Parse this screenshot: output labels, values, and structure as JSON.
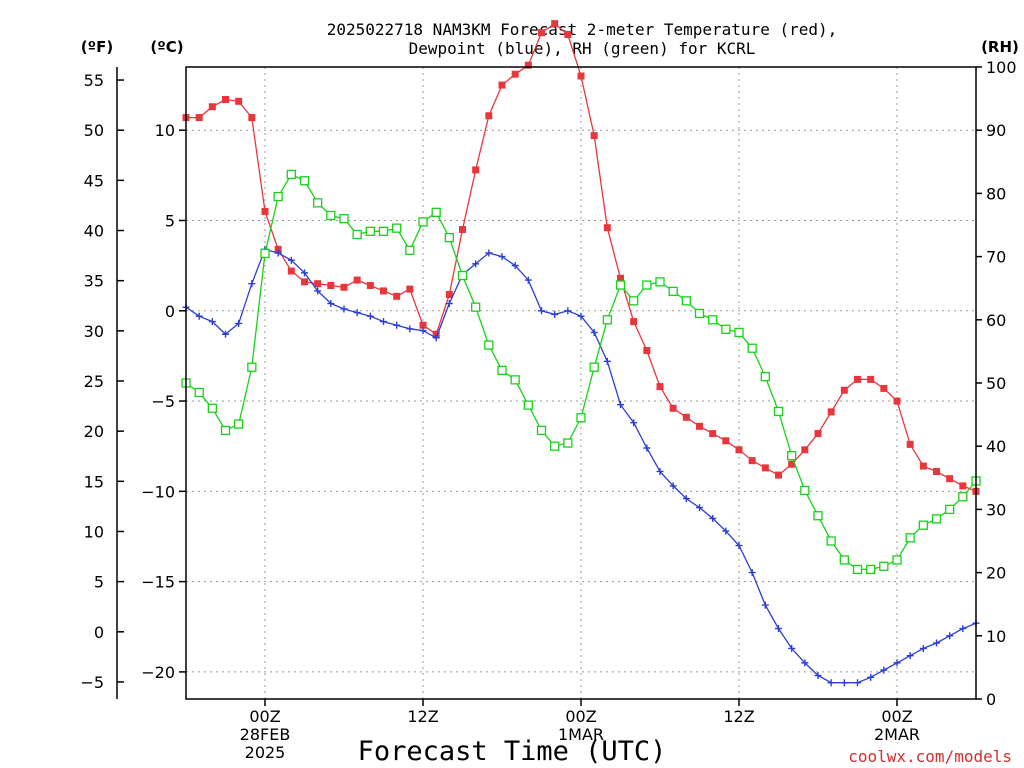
{
  "chart_data": {
    "type": "line",
    "title_line1": "2025022718 NAM3KM Forecast 2-meter Temperature (red),",
    "title_line2": "Dewpoint (blue), RH (green) for KCRL",
    "xlabel": "Forecast Time (UTC)",
    "left_unit_f": "(ºF)",
    "left_unit_c": "(ºC)",
    "right_unit": "(RH)",
    "credit": "coolwx.com/models",
    "x_range_hours": [
      -6,
      54
    ],
    "c_range": [
      -21.5,
      13.5
    ],
    "rh_range": [
      0,
      100
    ],
    "f_ticks": [
      55,
      50,
      45,
      40,
      35,
      30,
      25,
      20,
      15,
      10,
      5,
      0,
      -5
    ],
    "c_ticks": [
      10,
      5,
      0,
      -5,
      -10,
      -15,
      -20
    ],
    "rh_ticks": [
      100,
      90,
      80,
      70,
      60,
      50,
      40,
      30,
      20,
      10,
      0
    ],
    "x_ticks": [
      {
        "hour": 0,
        "line1": "00Z",
        "line2": "28FEB",
        "line3": "2025"
      },
      {
        "hour": 12,
        "line1": "12Z",
        "line2": "",
        "line3": ""
      },
      {
        "hour": 24,
        "line1": "00Z",
        "line2": "1MAR",
        "line3": ""
      },
      {
        "hour": 36,
        "line1": "12Z",
        "line2": "",
        "line3": ""
      },
      {
        "hour": 48,
        "line1": "00Z",
        "line2": "2MAR",
        "line3": ""
      }
    ],
    "colors": {
      "temperature": "#e8373c",
      "dewpoint": "#2b3ed8",
      "rh": "#19d119",
      "grid": "#9a9a9a",
      "credit": "#d42f2f"
    },
    "x": [
      -6,
      -5,
      -4,
      -3,
      -2,
      -1,
      0,
      1,
      2,
      3,
      4,
      5,
      6,
      7,
      8,
      9,
      10,
      11,
      12,
      13,
      14,
      15,
      16,
      17,
      18,
      19,
      20,
      21,
      22,
      23,
      24,
      25,
      26,
      27,
      28,
      29,
      30,
      31,
      32,
      33,
      34,
      35,
      36,
      37,
      38,
      39,
      40,
      41,
      42,
      43,
      44,
      45,
      46,
      47,
      48,
      49,
      50,
      51,
      52,
      53,
      54
    ],
    "series": [
      {
        "name": "Temperature",
        "unit": "C",
        "values": [
          10.7,
          10.7,
          11.3,
          11.7,
          11.6,
          10.7,
          5.5,
          3.4,
          2.2,
          1.6,
          1.5,
          1.4,
          1.3,
          1.7,
          1.4,
          1.1,
          0.8,
          1.2,
          -0.8,
          -1.3,
          0.9,
          4.5,
          7.8,
          10.8,
          12.5,
          13.1,
          13.6,
          15.4,
          15.9,
          15.3,
          13.0,
          9.7,
          4.6,
          1.8,
          -0.6,
          -2.2,
          -4.2,
          -5.4,
          -5.9,
          -6.4,
          -6.8,
          -7.2,
          -7.7,
          -8.3,
          -8.7,
          -9.1,
          -8.5,
          -7.7,
          -6.8,
          -5.6,
          -4.4,
          -3.8,
          -3.8,
          -4.3,
          -5.0,
          -7.4,
          -8.6,
          -8.9,
          -9.3,
          -9.7,
          -10.0
        ]
      },
      {
        "name": "Dewpoint",
        "unit": "C",
        "values": [
          0.2,
          -0.3,
          -0.6,
          -1.3,
          -0.7,
          1.5,
          3.4,
          3.2,
          2.8,
          2.1,
          1.1,
          0.4,
          0.1,
          -0.1,
          -0.3,
          -0.6,
          -0.8,
          -1.0,
          -1.1,
          -1.5,
          0.4,
          2.0,
          2.6,
          3.2,
          3.0,
          2.5,
          1.7,
          0.0,
          -0.2,
          0.0,
          -0.3,
          -1.2,
          -2.8,
          -5.2,
          -6.2,
          -7.6,
          -8.9,
          -9.7,
          -10.4,
          -10.9,
          -11.5,
          -12.2,
          -13.0,
          -14.5,
          -16.3,
          -17.6,
          -18.7,
          -19.5,
          -20.2,
          -20.6,
          -20.6,
          -20.6,
          -20.3,
          -19.9,
          -19.5,
          -19.1,
          -18.7,
          -18.4,
          -18.0,
          -17.6,
          -17.3
        ]
      },
      {
        "name": "RH",
        "unit": "%",
        "values": [
          50.0,
          48.5,
          46.0,
          42.5,
          43.5,
          52.5,
          70.5,
          79.5,
          83.0,
          82.0,
          78.5,
          76.5,
          76.0,
          73.5,
          74.0,
          74.0,
          74.5,
          71.0,
          75.5,
          77.0,
          73.0,
          67.0,
          62.0,
          56.0,
          52.0,
          50.5,
          46.5,
          42.5,
          40.0,
          40.5,
          44.5,
          52.5,
          60.0,
          65.5,
          63.0,
          65.5,
          66.0,
          64.5,
          63.0,
          61.0,
          60.0,
          58.5,
          58.0,
          55.5,
          51.0,
          45.5,
          38.5,
          33.0,
          29.0,
          25.0,
          22.0,
          20.5,
          20.5,
          21.0,
          22.0,
          25.5,
          27.5,
          28.5,
          30.0,
          32.0,
          34.5
        ]
      }
    ]
  }
}
